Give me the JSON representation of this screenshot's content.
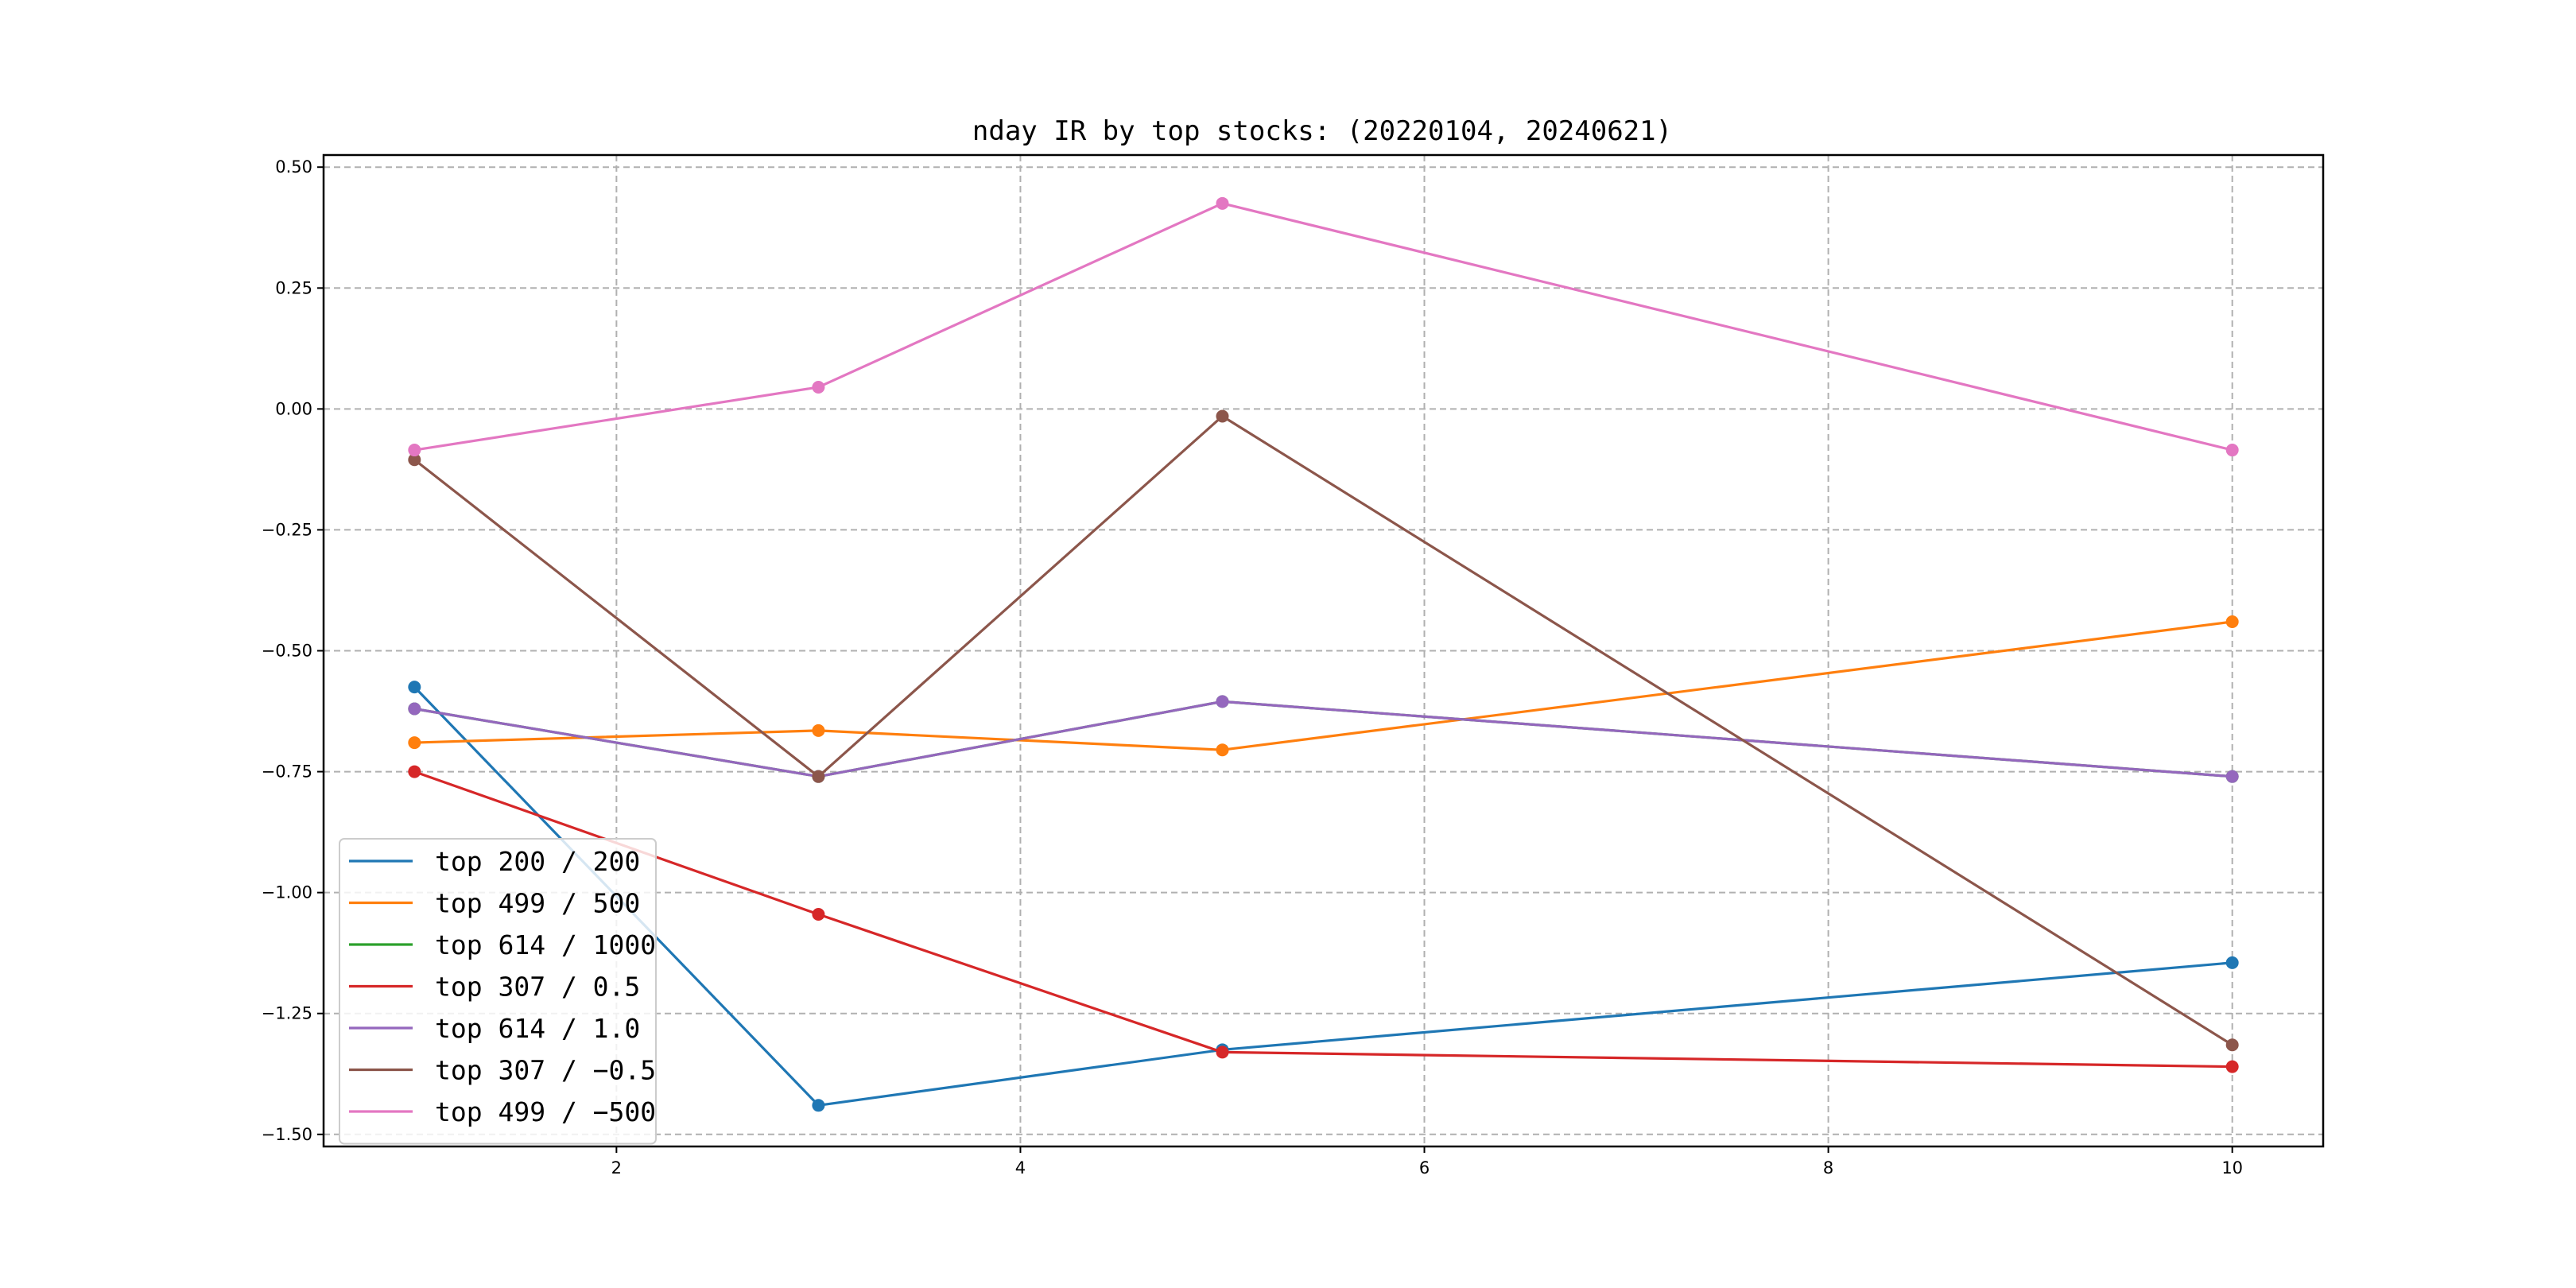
{
  "chart_data": {
    "type": "line",
    "title": "nday IR by top stocks: (20220104, 20240621)",
    "xlabel": "",
    "ylabel": "",
    "x": [
      1,
      3,
      5,
      10
    ],
    "xlim": [
      0.55,
      10.45
    ],
    "ylim": [
      -1.525,
      0.525
    ],
    "xticks": [
      2,
      4,
      6,
      8,
      10
    ],
    "yticks": [
      0.5,
      0.25,
      0.0,
      -0.25,
      -0.5,
      -0.75,
      -1.0,
      -1.25,
      -1.5
    ],
    "ytick_labels": [
      "0.50",
      "0.25",
      "0.00",
      "−0.25",
      "−0.50",
      "−0.75",
      "−1.00",
      "−1.25",
      "−1.50"
    ],
    "grid": true,
    "legend_position": "lower-left",
    "series": [
      {
        "name": "top 200 / 200",
        "color": "#1f77b4",
        "values": [
          -0.575,
          -1.44,
          -1.325,
          -1.145
        ]
      },
      {
        "name": "top 499 / 500",
        "color": "#ff7f0e",
        "values": [
          -0.69,
          -0.665,
          -0.705,
          -0.44
        ]
      },
      {
        "name": "top 614 / 1000",
        "color": "#2ca02c",
        "values": [
          -0.62,
          -0.76,
          -0.605,
          -0.76
        ]
      },
      {
        "name": "top 307 / 0.5",
        "color": "#d62728",
        "values": [
          -0.75,
          -1.045,
          -1.33,
          -1.36
        ]
      },
      {
        "name": "top 614 / 1.0",
        "color": "#9467bd",
        "values": [
          -0.62,
          -0.76,
          -0.605,
          -0.76
        ]
      },
      {
        "name": "top 307 / −0.5",
        "color": "#8c564b",
        "values": [
          -0.105,
          -0.76,
          -0.015,
          -1.315
        ]
      },
      {
        "name": "top 499 / −500",
        "color": "#e377c2",
        "values": [
          -0.085,
          0.045,
          0.425,
          -0.085
        ]
      }
    ]
  }
}
